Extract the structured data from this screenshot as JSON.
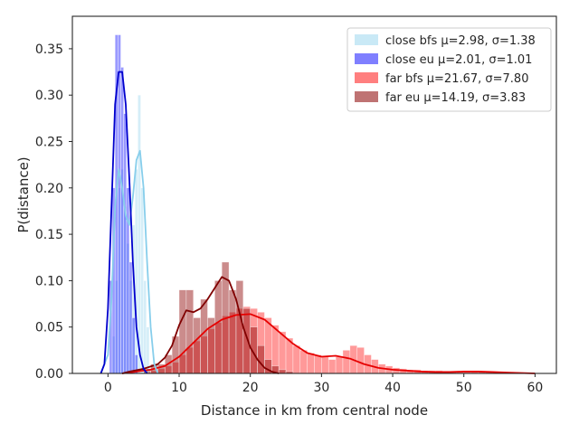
{
  "chart_data": {
    "type": "bar",
    "title": "",
    "xlabel": "Distance in km from central node",
    "ylabel": "P(distance)",
    "xlim": [
      -5,
      63
    ],
    "ylim": [
      0,
      0.385
    ],
    "xticks": [
      0,
      10,
      20,
      30,
      40,
      50,
      60
    ],
    "yticks": [
      0.0,
      0.05,
      0.1,
      0.15,
      0.2,
      0.25,
      0.3,
      0.35
    ],
    "grid": false,
    "legend_position": "top-right",
    "series": [
      {
        "name": "close bfs μ=2.98, σ=1.38",
        "bar_color": "#87ceeb",
        "bar_opacity": 0.35,
        "kde_color": "#87ceeb",
        "bin_edges": [
          0.6,
          1.0,
          1.4,
          1.8,
          2.2,
          2.6,
          3.0,
          3.4,
          3.8,
          4.2,
          4.6,
          5.0,
          5.4,
          5.8
        ],
        "values": [
          0.04,
          0.1,
          0.2,
          0.22,
          0.18,
          0.14,
          0.1,
          0.16,
          0.22,
          0.3,
          0.2,
          0.1,
          0.05
        ],
        "kde": [
          [
            -1,
            0
          ],
          [
            0,
            0.02
          ],
          [
            0.5,
            0.08
          ],
          [
            1,
            0.18
          ],
          [
            1.5,
            0.22
          ],
          [
            2,
            0.2
          ],
          [
            2.5,
            0.17
          ],
          [
            3,
            0.16
          ],
          [
            3.5,
            0.19
          ],
          [
            4,
            0.23
          ],
          [
            4.5,
            0.24
          ],
          [
            5,
            0.2
          ],
          [
            5.5,
            0.12
          ],
          [
            6,
            0.05
          ],
          [
            6.5,
            0.01
          ],
          [
            7,
            0
          ]
        ]
      },
      {
        "name": "close eu μ=2.01, σ=1.01",
        "bar_color": "#0000ff",
        "bar_opacity": 0.4,
        "kde_color": "#0000cd",
        "bin_edges": [
          0.2,
          0.6,
          1.0,
          1.4,
          1.8,
          2.2,
          2.6,
          3.0,
          3.4,
          3.8,
          4.2
        ],
        "values": [
          0.1,
          0.2,
          0.365,
          0.365,
          0.33,
          0.28,
          0.2,
          0.12,
          0.06,
          0.02
        ],
        "kde": [
          [
            -1,
            0
          ],
          [
            -0.5,
            0.01
          ],
          [
            0,
            0.07
          ],
          [
            0.5,
            0.18
          ],
          [
            1,
            0.29
          ],
          [
            1.5,
            0.325
          ],
          [
            2,
            0.325
          ],
          [
            2.5,
            0.29
          ],
          [
            3,
            0.21
          ],
          [
            3.5,
            0.12
          ],
          [
            4,
            0.05
          ],
          [
            4.5,
            0.02
          ],
          [
            5,
            0.005
          ],
          [
            5.5,
            0
          ]
        ]
      },
      {
        "name": "far bfs μ=21.67, σ=7.80",
        "bar_color": "#ff0000",
        "bar_opacity": 0.4,
        "kde_color": "#e60000",
        "bin_edges": [
          5,
          6,
          7,
          8,
          9,
          10,
          11,
          12,
          13,
          14,
          15,
          16,
          17,
          18,
          19,
          20,
          21,
          22,
          23,
          24,
          25,
          26,
          27,
          28,
          29,
          30,
          31,
          32,
          33,
          34,
          35,
          36,
          37,
          38,
          39,
          40,
          41,
          42,
          43,
          44,
          45,
          46,
          47,
          48,
          49,
          50,
          51,
          52,
          53,
          54,
          55,
          56,
          57,
          58,
          59,
          60
        ],
        "values": [
          0.002,
          0.003,
          0.005,
          0.008,
          0.012,
          0.02,
          0.028,
          0.035,
          0.04,
          0.048,
          0.055,
          0.062,
          0.066,
          0.07,
          0.072,
          0.07,
          0.066,
          0.06,
          0.052,
          0.045,
          0.038,
          0.03,
          0.025,
          0.022,
          0.02,
          0.018,
          0.015,
          0.018,
          0.025,
          0.03,
          0.028,
          0.02,
          0.015,
          0.01,
          0.008,
          0.006,
          0.005,
          0.004,
          0.004,
          0.003,
          0.003,
          0.003,
          0.002,
          0.002,
          0.002,
          0.002,
          0.002,
          0.002,
          0.002,
          0.001,
          0.001,
          0.001,
          0.001,
          0.001,
          0.001
        ],
        "kde": [
          [
            2,
            0
          ],
          [
            4,
            0.002
          ],
          [
            6,
            0.004
          ],
          [
            8,
            0.008
          ],
          [
            10,
            0.018
          ],
          [
            12,
            0.033
          ],
          [
            14,
            0.048
          ],
          [
            16,
            0.058
          ],
          [
            18,
            0.063
          ],
          [
            20,
            0.064
          ],
          [
            22,
            0.058
          ],
          [
            24,
            0.045
          ],
          [
            26,
            0.032
          ],
          [
            28,
            0.022
          ],
          [
            30,
            0.018
          ],
          [
            32,
            0.019
          ],
          [
            34,
            0.016
          ],
          [
            36,
            0.01
          ],
          [
            38,
            0.006
          ],
          [
            40,
            0.004
          ],
          [
            42,
            0.003
          ],
          [
            44,
            0.002
          ],
          [
            46,
            0.0015
          ],
          [
            48,
            0.0015
          ],
          [
            50,
            0.002
          ],
          [
            52,
            0.002
          ],
          [
            54,
            0.0015
          ],
          [
            56,
            0.001
          ],
          [
            58,
            0.0005
          ],
          [
            60,
            0
          ]
        ]
      },
      {
        "name": "far eu μ=14.19, σ=3.83",
        "bar_color": "#8b0000",
        "bar_opacity": 0.45,
        "kde_color": "#800000",
        "bin_edges": [
          5,
          6,
          7,
          8,
          9,
          10,
          11,
          12,
          13,
          14,
          15,
          16,
          17,
          18,
          19,
          20,
          21,
          22,
          23,
          24,
          25,
          26
        ],
        "values": [
          0.005,
          0.01,
          0.01,
          0.02,
          0.04,
          0.09,
          0.09,
          0.06,
          0.08,
          0.06,
          0.1,
          0.12,
          0.09,
          0.1,
          0.07,
          0.05,
          0.03,
          0.015,
          0.008,
          0.004,
          0.002
        ],
        "kde": [
          [
            2,
            0
          ],
          [
            3,
            0.002
          ],
          [
            5,
            0.005
          ],
          [
            7,
            0.01
          ],
          [
            8,
            0.017
          ],
          [
            9,
            0.03
          ],
          [
            10,
            0.052
          ],
          [
            11,
            0.068
          ],
          [
            12,
            0.066
          ],
          [
            13,
            0.07
          ],
          [
            14,
            0.08
          ],
          [
            15,
            0.092
          ],
          [
            16,
            0.104
          ],
          [
            17,
            0.1
          ],
          [
            18,
            0.08
          ],
          [
            19,
            0.05
          ],
          [
            20,
            0.028
          ],
          [
            21,
            0.015
          ],
          [
            22,
            0.006
          ],
          [
            23,
            0.002
          ],
          [
            24,
            0
          ]
        ]
      }
    ]
  }
}
